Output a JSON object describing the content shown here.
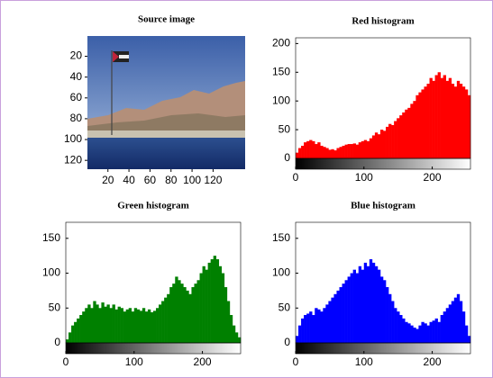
{
  "chart_data": [
    {
      "type": "image",
      "title": "Source image",
      "xlim": [
        0.5,
        150.5
      ],
      "ylim": [
        0.5,
        128.5
      ],
      "xticks": [
        20,
        40,
        60,
        80,
        100,
        120
      ],
      "yticks": [
        20,
        40,
        60,
        80,
        100,
        120
      ]
    },
    {
      "type": "histogram",
      "title": "Red histogram",
      "color": "#ff0000",
      "bins": [
        0,
        4,
        8,
        12,
        16,
        20,
        24,
        28,
        32,
        36,
        40,
        44,
        48,
        52,
        56,
        60,
        64,
        68,
        72,
        76,
        80,
        84,
        88,
        92,
        96,
        100,
        104,
        108,
        112,
        116,
        120,
        124,
        128,
        132,
        136,
        140,
        144,
        148,
        152,
        156,
        160,
        164,
        168,
        172,
        176,
        180,
        184,
        188,
        192,
        196,
        200,
        204,
        208,
        212,
        216,
        220,
        224,
        228,
        232,
        236,
        240,
        244,
        248,
        252,
        256
      ],
      "values": [
        10,
        18,
        22,
        28,
        30,
        32,
        30,
        25,
        28,
        22,
        20,
        18,
        15,
        16,
        14,
        18,
        20,
        22,
        24,
        25,
        25,
        26,
        24,
        28,
        30,
        32,
        30,
        35,
        40,
        45,
        42,
        50,
        48,
        55,
        60,
        58,
        65,
        70,
        75,
        80,
        85,
        88,
        95,
        100,
        110,
        115,
        120,
        125,
        130,
        140,
        135,
        145,
        150,
        140,
        145,
        135,
        140,
        130,
        125,
        135,
        130,
        125,
        120,
        110
      ],
      "xlim": [
        0,
        256
      ],
      "ylim": [
        0,
        210
      ],
      "xticks": [
        0,
        100,
        200
      ],
      "yticks": [
        0,
        50,
        100,
        150,
        200
      ]
    },
    {
      "type": "histogram",
      "title": "Green histogram",
      "color": "#008000",
      "bins": [
        0,
        4,
        8,
        12,
        16,
        20,
        24,
        28,
        32,
        36,
        40,
        44,
        48,
        52,
        56,
        60,
        64,
        68,
        72,
        76,
        80,
        84,
        88,
        92,
        96,
        100,
        104,
        108,
        112,
        116,
        120,
        124,
        128,
        132,
        136,
        140,
        144,
        148,
        152,
        156,
        160,
        164,
        168,
        172,
        176,
        180,
        184,
        188,
        192,
        196,
        200,
        204,
        208,
        212,
        216,
        220,
        224,
        228,
        232,
        236,
        240,
        244,
        248,
        252,
        256
      ],
      "values": [
        5,
        15,
        25,
        30,
        35,
        40,
        45,
        50,
        55,
        50,
        60,
        55,
        50,
        58,
        52,
        55,
        50,
        55,
        48,
        52,
        50,
        45,
        48,
        50,
        45,
        50,
        48,
        46,
        50,
        45,
        48,
        44,
        46,
        50,
        55,
        60,
        65,
        70,
        80,
        85,
        95,
        90,
        85,
        80,
        75,
        70,
        80,
        85,
        90,
        100,
        110,
        105,
        115,
        120,
        125,
        120,
        110,
        100,
        80,
        60,
        40,
        25,
        15,
        8
      ],
      "xlim": [
        0,
        256
      ],
      "ylim": [
        0,
        173
      ],
      "xticks": [
        0,
        100,
        200
      ],
      "yticks": [
        0,
        50,
        100,
        150
      ]
    },
    {
      "type": "histogram",
      "title": "Blue histogram",
      "color": "#0000ff",
      "bins": [
        0,
        4,
        8,
        12,
        16,
        20,
        24,
        28,
        32,
        36,
        40,
        44,
        48,
        52,
        56,
        60,
        64,
        68,
        72,
        76,
        80,
        84,
        88,
        92,
        96,
        100,
        104,
        108,
        112,
        116,
        120,
        124,
        128,
        132,
        136,
        140,
        144,
        148,
        152,
        156,
        160,
        164,
        168,
        172,
        176,
        180,
        184,
        188,
        192,
        196,
        200,
        204,
        208,
        212,
        216,
        220,
        224,
        228,
        232,
        236,
        240,
        244,
        248,
        252,
        256
      ],
      "values": [
        10,
        25,
        35,
        40,
        42,
        45,
        40,
        50,
        48,
        45,
        50,
        55,
        60,
        65,
        70,
        75,
        80,
        85,
        90,
        95,
        100,
        105,
        100,
        110,
        105,
        115,
        110,
        120,
        115,
        110,
        105,
        95,
        90,
        80,
        70,
        60,
        50,
        45,
        40,
        35,
        30,
        28,
        25,
        22,
        20,
        25,
        30,
        28,
        25,
        30,
        32,
        35,
        30,
        40,
        45,
        50,
        55,
        60,
        65,
        70,
        60,
        45,
        25,
        10
      ],
      "xlim": [
        0,
        256
      ],
      "ylim": [
        0,
        173
      ],
      "xticks": [
        0,
        100,
        200
      ],
      "yticks": [
        0,
        50,
        100,
        150
      ]
    }
  ]
}
